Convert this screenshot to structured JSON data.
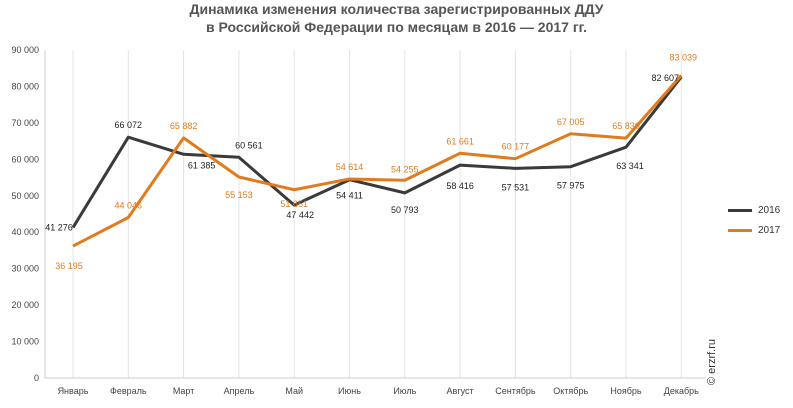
{
  "watermark": "© erzrf.ru",
  "colors": {
    "s2016": "#3a3a3a",
    "s2017": "#e07b1e",
    "grid": "#e4e4e4",
    "label2017": "#e07b1e",
    "label2016": "#222222"
  },
  "chart_data": {
    "type": "line",
    "title_line1": "Динамика изменения количества зарегистрированных ДДУ",
    "title_line2": "в Российской Федерации по месяцам в 2016 — 2017 гг.",
    "categories": [
      "Январь",
      "Февраль",
      "Март",
      "Апрель",
      "Май",
      "Июнь",
      "Июль",
      "Август",
      "Сентябрь",
      "Октябрь",
      "Ноябрь",
      "Декабрь"
    ],
    "ylim": [
      0,
      90000
    ],
    "yticks": [
      0,
      10000,
      20000,
      30000,
      40000,
      50000,
      60000,
      70000,
      80000,
      90000
    ],
    "ytick_labels": [
      "0",
      "10 000",
      "20 000",
      "30 000",
      "40 000",
      "50 000",
      "60 000",
      "70 000",
      "80 000",
      "90 000"
    ],
    "grid": "vertical",
    "legend_position": "right",
    "series": [
      {
        "name": "2016",
        "values": [
          41276,
          66072,
          61385,
          60561,
          47442,
          54411,
          50793,
          58416,
          57531,
          57975,
          63341,
          82607
        ],
        "labels": [
          "41 276",
          "66 072",
          "61 385",
          "60 561",
          "47 442",
          "54 411",
          "50 793",
          "58 416",
          "57 531",
          "57 975",
          "63 341",
          "82 607"
        ]
      },
      {
        "name": "2017",
        "values": [
          36195,
          44046,
          65882,
          55153,
          51651,
          54614,
          54255,
          61661,
          60177,
          67005,
          65830,
          83039
        ],
        "labels": [
          "36 195",
          "44 046",
          "65 882",
          "55 153",
          "51 651",
          "54 614",
          "54 255",
          "61 661",
          "60 177",
          "67 005",
          "65 830",
          "83 039"
        ]
      }
    ]
  }
}
